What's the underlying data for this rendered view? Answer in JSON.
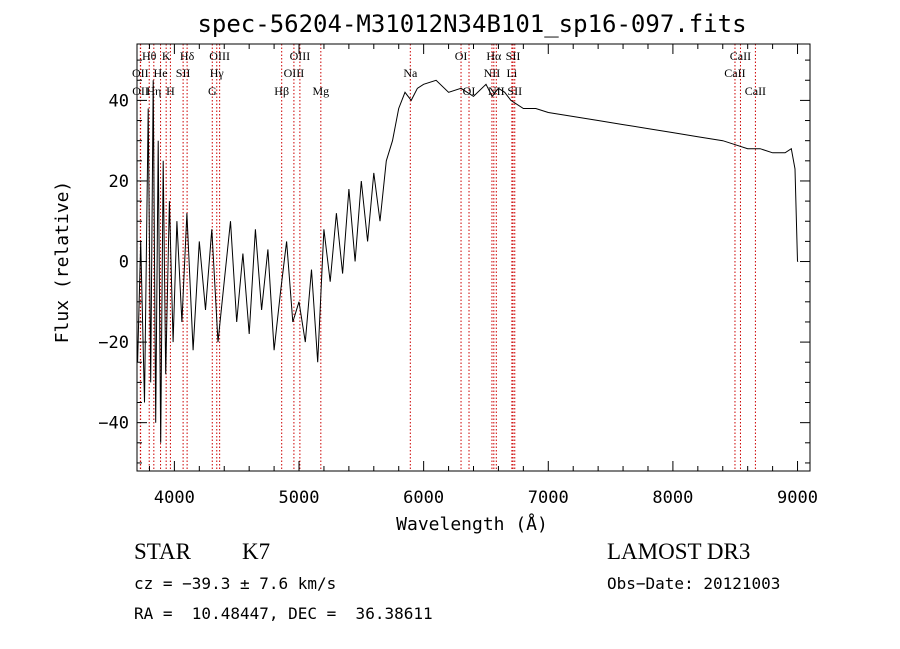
{
  "chart_data": {
    "type": "line",
    "title": "spec-56204-M31012N34B101_sp16-097.fits",
    "xlabel": "Wavelength (Å)",
    "ylabel": "Flux (relative)",
    "xlim": [
      3700,
      9100
    ],
    "ylim": [
      -52,
      54
    ],
    "xticks": [
      4000,
      5000,
      6000,
      7000,
      8000,
      9000
    ],
    "yticks": [
      -40,
      -20,
      0,
      20,
      40
    ],
    "series_color": "#000000",
    "marker_color": "#cc0000",
    "spectrum": {
      "x": [
        3705,
        3730,
        3760,
        3790,
        3810,
        3830,
        3850,
        3870,
        3890,
        3910,
        3930,
        3960,
        3990,
        4020,
        4060,
        4100,
        4150,
        4200,
        4250,
        4300,
        4350,
        4400,
        4450,
        4500,
        4550,
        4600,
        4650,
        4700,
        4750,
        4800,
        4850,
        4900,
        4950,
        5000,
        5050,
        5100,
        5150,
        5200,
        5250,
        5300,
        5350,
        5400,
        5450,
        5500,
        5550,
        5600,
        5650,
        5700,
        5750,
        5800,
        5850,
        5900,
        5950,
        6000,
        6100,
        6200,
        6300,
        6400,
        6500,
        6550,
        6600,
        6650,
        6700,
        6800,
        6900,
        7000,
        7200,
        7400,
        7600,
        7800,
        8000,
        8200,
        8400,
        8500,
        8600,
        8700,
        8800,
        8900,
        8950,
        8980,
        9000
      ],
      "y": [
        -25,
        5,
        -35,
        38,
        -30,
        45,
        -40,
        30,
        -45,
        25,
        -28,
        15,
        -20,
        10,
        -15,
        12,
        -22,
        5,
        -12,
        8,
        -20,
        -5,
        10,
        -15,
        2,
        -18,
        8,
        -12,
        3,
        -22,
        -8,
        5,
        -15,
        -10,
        -20,
        -2,
        -25,
        8,
        -5,
        12,
        -3,
        18,
        0,
        20,
        5,
        22,
        10,
        25,
        30,
        38,
        42,
        40,
        43,
        44,
        45,
        42,
        43,
        41,
        44,
        41,
        43,
        42,
        40,
        38,
        38,
        37,
        36,
        35,
        34,
        33,
        32,
        31,
        30,
        29,
        28,
        28,
        27,
        27,
        28,
        23,
        0
      ]
    },
    "spectral_lines": [
      {
        "label": "Hθ",
        "wl": 3798,
        "row": 1
      },
      {
        "label": "K",
        "wl": 3934,
        "row": 1
      },
      {
        "label": "Hδ",
        "wl": 4102,
        "row": 1
      },
      {
        "label": "OIII",
        "wl": 4363,
        "row": 1
      },
      {
        "label": "OIII",
        "wl": 5007,
        "row": 1
      },
      {
        "label": "OII",
        "wl": 3727,
        "row": 2
      },
      {
        "label": "He",
        "wl": 3889,
        "row": 2
      },
      {
        "label": "SII",
        "wl": 4070,
        "row": 2
      },
      {
        "label": "Hγ",
        "wl": 4340,
        "row": 2
      },
      {
        "label": "OIII",
        "wl": 4959,
        "row": 2
      },
      {
        "label": "OII",
        "wl": 3729,
        "row": 3
      },
      {
        "label": "Hη",
        "wl": 3835,
        "row": 3
      },
      {
        "label": "H",
        "wl": 3968,
        "row": 3
      },
      {
        "label": "G",
        "wl": 4304,
        "row": 3
      },
      {
        "label": "Hβ",
        "wl": 4861,
        "row": 3
      },
      {
        "label": "Mg",
        "wl": 5175,
        "row": 3
      },
      {
        "label": "Na",
        "wl": 5893,
        "row": 2
      },
      {
        "label": "OI",
        "wl": 6300,
        "row": 1
      },
      {
        "label": "OI",
        "wl": 6364,
        "row": 3
      },
      {
        "label": "Hα",
        "wl": 6563,
        "row": 1
      },
      {
        "label": "NII",
        "wl": 6548,
        "row": 2
      },
      {
        "label": "NII",
        "wl": 6583,
        "row": 3
      },
      {
        "label": "SII",
        "wl": 6717,
        "row": 1
      },
      {
        "label": "Li",
        "wl": 6708,
        "row": 2
      },
      {
        "label": "SII",
        "wl": 6731,
        "row": 3
      },
      {
        "label": "CaII",
        "wl": 8542,
        "row": 1
      },
      {
        "label": "CaII",
        "wl": 8498,
        "row": 2
      },
      {
        "label": "CaII",
        "wl": 8662,
        "row": 3
      }
    ]
  },
  "info": {
    "class": "STAR",
    "subclass": "K7",
    "survey": "LAMOST DR3",
    "cz": "cz = −39.3 ± 7.6 km/s",
    "obs_date": "Obs−Date: 20121003",
    "coords": "RA =  10.48447, DEC =  36.38611"
  }
}
